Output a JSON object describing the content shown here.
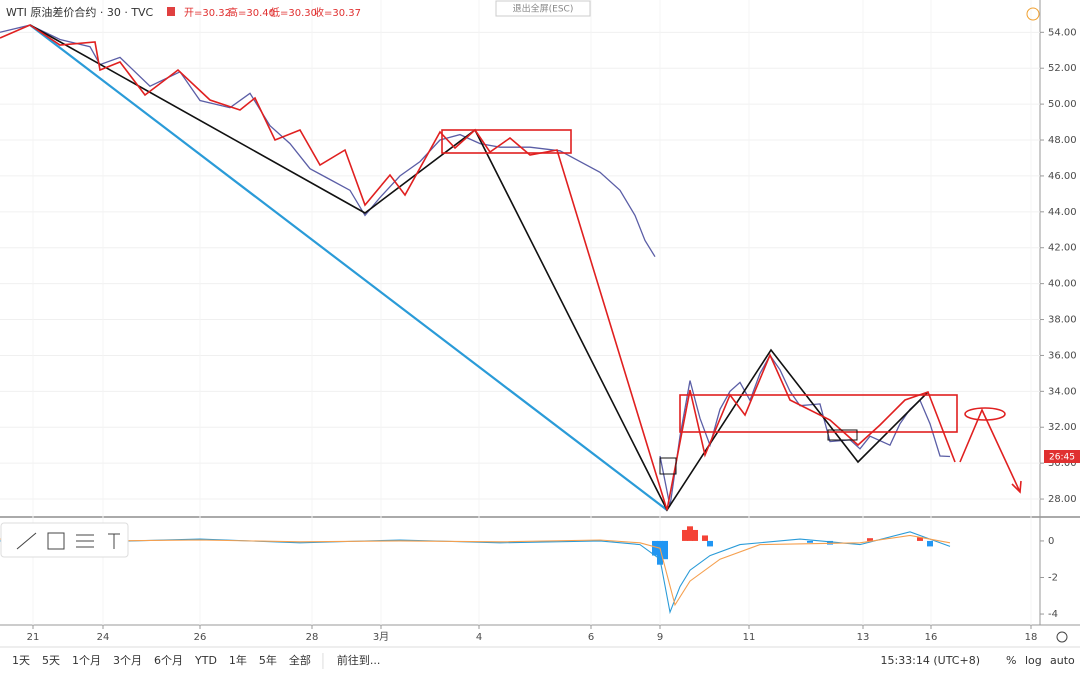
{
  "header": {
    "symbol": "WTI 原油差价合约 · 30 · TVC",
    "open": "开=30.32",
    "high": "高=30.40",
    "low": "低=30.30",
    "close": "收=30.37",
    "exit_fullscreen": "退出全屏(ESC)",
    "countdown": "26:45"
  },
  "toolbar": {
    "ranges": [
      "1天",
      "5天",
      "1个月",
      "3个月",
      "6个月",
      "YTD",
      "1年",
      "5年",
      "全部"
    ],
    "goto": "前往到...",
    "clock": "15:33:14 (UTC+8)",
    "percent": "%",
    "log": "log",
    "auto": "auto"
  },
  "chart_data": [
    {
      "type": "line",
      "x": [
        0,
        3,
        6,
        9,
        10,
        12,
        15,
        18,
        20,
        23,
        25,
        27,
        29,
        31,
        33,
        35,
        36.5,
        38,
        40,
        42,
        44,
        46,
        48,
        50,
        53,
        56,
        58,
        60,
        62,
        63.5,
        64.5,
        65.5,
        null,
        66,
        67,
        68,
        69,
        70,
        71,
        72,
        73,
        74,
        75,
        76,
        77,
        78,
        79,
        80,
        82,
        83,
        85,
        86,
        87,
        89,
        90,
        91,
        92,
        93,
        94,
        95
      ],
      "series": [
        {
          "color": "#5b5ea6",
          "values": [
            54.0,
            54.4,
            53.6,
            53.2,
            52.2,
            52.6,
            51.0,
            51.8,
            50.2,
            49.8,
            50.6,
            48.8,
            47.8,
            46.4,
            45.8,
            45.2,
            43.8,
            44.8,
            46.0,
            46.8,
            48.0,
            48.3,
            47.8,
            47.6,
            47.6,
            47.4,
            46.8,
            46.2,
            45.2,
            43.8,
            42.4,
            41.5,
            null,
            30.4,
            27.6,
            31.5,
            34.6,
            32.5,
            31.0,
            33.0,
            34.0,
            34.5,
            33.5,
            35.0,
            36.0,
            35.2,
            34.0,
            33.2,
            33.3,
            31.2,
            31.3,
            30.8,
            31.5,
            31.0,
            32.2,
            33.0,
            33.5,
            32.2,
            30.4,
            30.37
          ]
        }
      ],
      "xlim": [
        0,
        104
      ],
      "xticks": [
        {
          "value": 3.3,
          "label": "21"
        },
        {
          "value": 10.3,
          "label": "24"
        },
        {
          "value": 20,
          "label": "26"
        },
        {
          "value": 31.2,
          "label": "28"
        },
        {
          "value": 38.1,
          "label": "3月"
        },
        {
          "value": 47.9,
          "label": "4"
        },
        {
          "value": 59.1,
          "label": "6"
        },
        {
          "value": 66,
          "label": "9"
        },
        {
          "value": 74.9,
          "label": "11"
        },
        {
          "value": 86.3,
          "label": "13"
        },
        {
          "value": 93.1,
          "label": "16"
        },
        {
          "value": 103.1,
          "label": "18"
        }
      ],
      "ylim": [
        27.0,
        55.8
      ],
      "yticks": [
        {
          "value": 28,
          "label": "28.00"
        },
        {
          "value": 30,
          "label": "30.00"
        },
        {
          "value": 32,
          "label": "32.00"
        },
        {
          "value": 34,
          "label": "34.00"
        },
        {
          "value": 36,
          "label": "36.00"
        },
        {
          "value": 38,
          "label": "38.00"
        },
        {
          "value": 40,
          "label": "40.00"
        },
        {
          "value": 42,
          "label": "42.00"
        },
        {
          "value": 44,
          "label": "44.00"
        },
        {
          "value": 46,
          "label": "46.00"
        },
        {
          "value": 48,
          "label": "48.00"
        },
        {
          "value": 50,
          "label": "50.00"
        },
        {
          "value": 52,
          "label": "52.00"
        },
        {
          "value": 54,
          "label": "54.00"
        }
      ],
      "grid": true
    },
    {
      "type": "macd",
      "xlim": [
        0,
        104
      ],
      "ylim": [
        -4.6,
        1.2
      ],
      "yticks": [
        0,
        -2,
        -4
      ],
      "series": [
        {
          "color": "#2a9bd8",
          "x": [
            0,
            10,
            20,
            30,
            40,
            50,
            60,
            64,
            66,
            67,
            68,
            69,
            71,
            74,
            80,
            86,
            91,
            93,
            95
          ],
          "values": [
            0,
            -0.05,
            0.1,
            -0.1,
            0.05,
            -0.1,
            0,
            -0.2,
            -1.0,
            -3.9,
            -2.5,
            -1.6,
            -0.8,
            -0.2,
            0.1,
            -0.2,
            0.5,
            0.1,
            -0.3
          ]
        },
        {
          "color": "#f5a050",
          "x": [
            0,
            10,
            20,
            30,
            40,
            50,
            60,
            64,
            66,
            67.5,
            69,
            72,
            76,
            86,
            91,
            95
          ],
          "values": [
            0.1,
            0,
            0.05,
            -0.05,
            0,
            -0.05,
            0.05,
            -0.1,
            -0.4,
            -3.5,
            -2.2,
            -1.0,
            -0.2,
            -0.1,
            0.3,
            -0.1
          ]
        }
      ],
      "histogram": {
        "x": [
          65.5,
          66,
          66.5,
          68.5,
          69,
          69.5,
          70.5,
          71,
          81,
          83,
          87,
          92,
          93
        ],
        "values": [
          -0.8,
          -1.3,
          -1.0,
          0.6,
          0.8,
          0.6,
          0.3,
          -0.3,
          -0.1,
          -0.2,
          0.15,
          0.2,
          -0.3
        ],
        "up_color": "#f44336",
        "down_color": "#2196f3"
      }
    }
  ]
}
